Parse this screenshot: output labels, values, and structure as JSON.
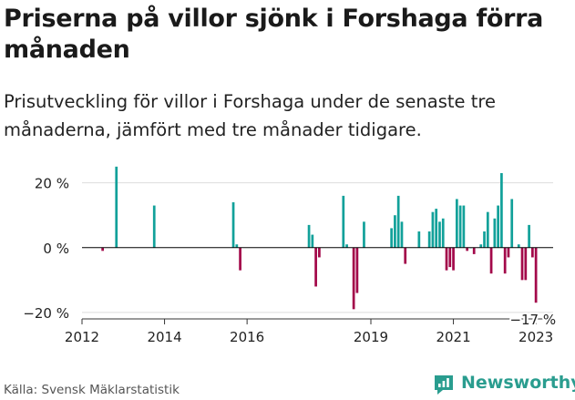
{
  "title": "Priserna på villor sjönk i Forshaga förra månaden",
  "subtitle": "Prisutveckling för villor i Forshaga under de senaste tre månaderna, jämfört med tre månader tidigare.",
  "source": "Källa: Svensk Mäklarstatistik",
  "brand": "Newsworthy",
  "colors": {
    "positive": "#12a19a",
    "negative": "#a3094a",
    "grid": "#dddddd",
    "axis": "#333333",
    "brand": "#2a9d8f"
  },
  "chart_data": {
    "type": "bar",
    "title": "",
    "xlabel": "",
    "ylabel": "",
    "ylim": [
      -22,
      23
    ],
    "xlim": [
      "2012-01",
      "2023-06"
    ],
    "y_ticks": [
      {
        "value": 20,
        "label": "20 %"
      },
      {
        "value": 0,
        "label": "0 %"
      },
      {
        "value": -20,
        "label": "−20 %"
      }
    ],
    "x_ticks": [
      {
        "value": "2012-01",
        "label": "2012"
      },
      {
        "value": "2014-01",
        "label": "2014"
      },
      {
        "value": "2016-01",
        "label": "2016"
      },
      {
        "value": "2019-01",
        "label": "2019"
      },
      {
        "value": "2021-01",
        "label": "2021"
      },
      {
        "value": "2023-01",
        "label": "2023"
      }
    ],
    "grid": true,
    "last_value_label": "−17 %",
    "x": [
      "2012-07",
      "2012-11",
      "2013-10",
      "2015-09",
      "2015-10",
      "2015-11",
      "2017-07",
      "2017-08",
      "2017-09",
      "2017-10",
      "2018-05",
      "2018-06",
      "2018-08",
      "2018-09",
      "2018-11",
      "2019-07",
      "2019-08",
      "2019-09",
      "2019-10",
      "2019-11",
      "2020-03",
      "2020-06",
      "2020-07",
      "2020-08",
      "2020-09",
      "2020-10",
      "2020-11",
      "2020-12",
      "2021-01",
      "2021-02",
      "2021-03",
      "2021-04",
      "2021-05",
      "2021-06",
      "2021-07",
      "2021-09",
      "2021-10",
      "2021-11",
      "2021-12",
      "2022-01",
      "2022-02",
      "2022-03",
      "2022-04",
      "2022-05",
      "2022-06",
      "2022-08",
      "2022-09",
      "2022-10",
      "2022-11",
      "2022-12",
      "2023-01"
    ],
    "values": [
      -1,
      25,
      13,
      14,
      1,
      -7,
      7,
      4,
      -12,
      -3,
      16,
      1,
      -19,
      -14,
      8,
      6,
      10,
      16,
      8,
      -5,
      5,
      5,
      11,
      12,
      8,
      9,
      -7,
      -6,
      -7,
      15,
      13,
      13,
      -1,
      0,
      -2,
      1,
      5,
      11,
      -8,
      9,
      13,
      23,
      -8,
      -3,
      15,
      1,
      -10,
      -10,
      7,
      -3,
      -17
    ]
  }
}
